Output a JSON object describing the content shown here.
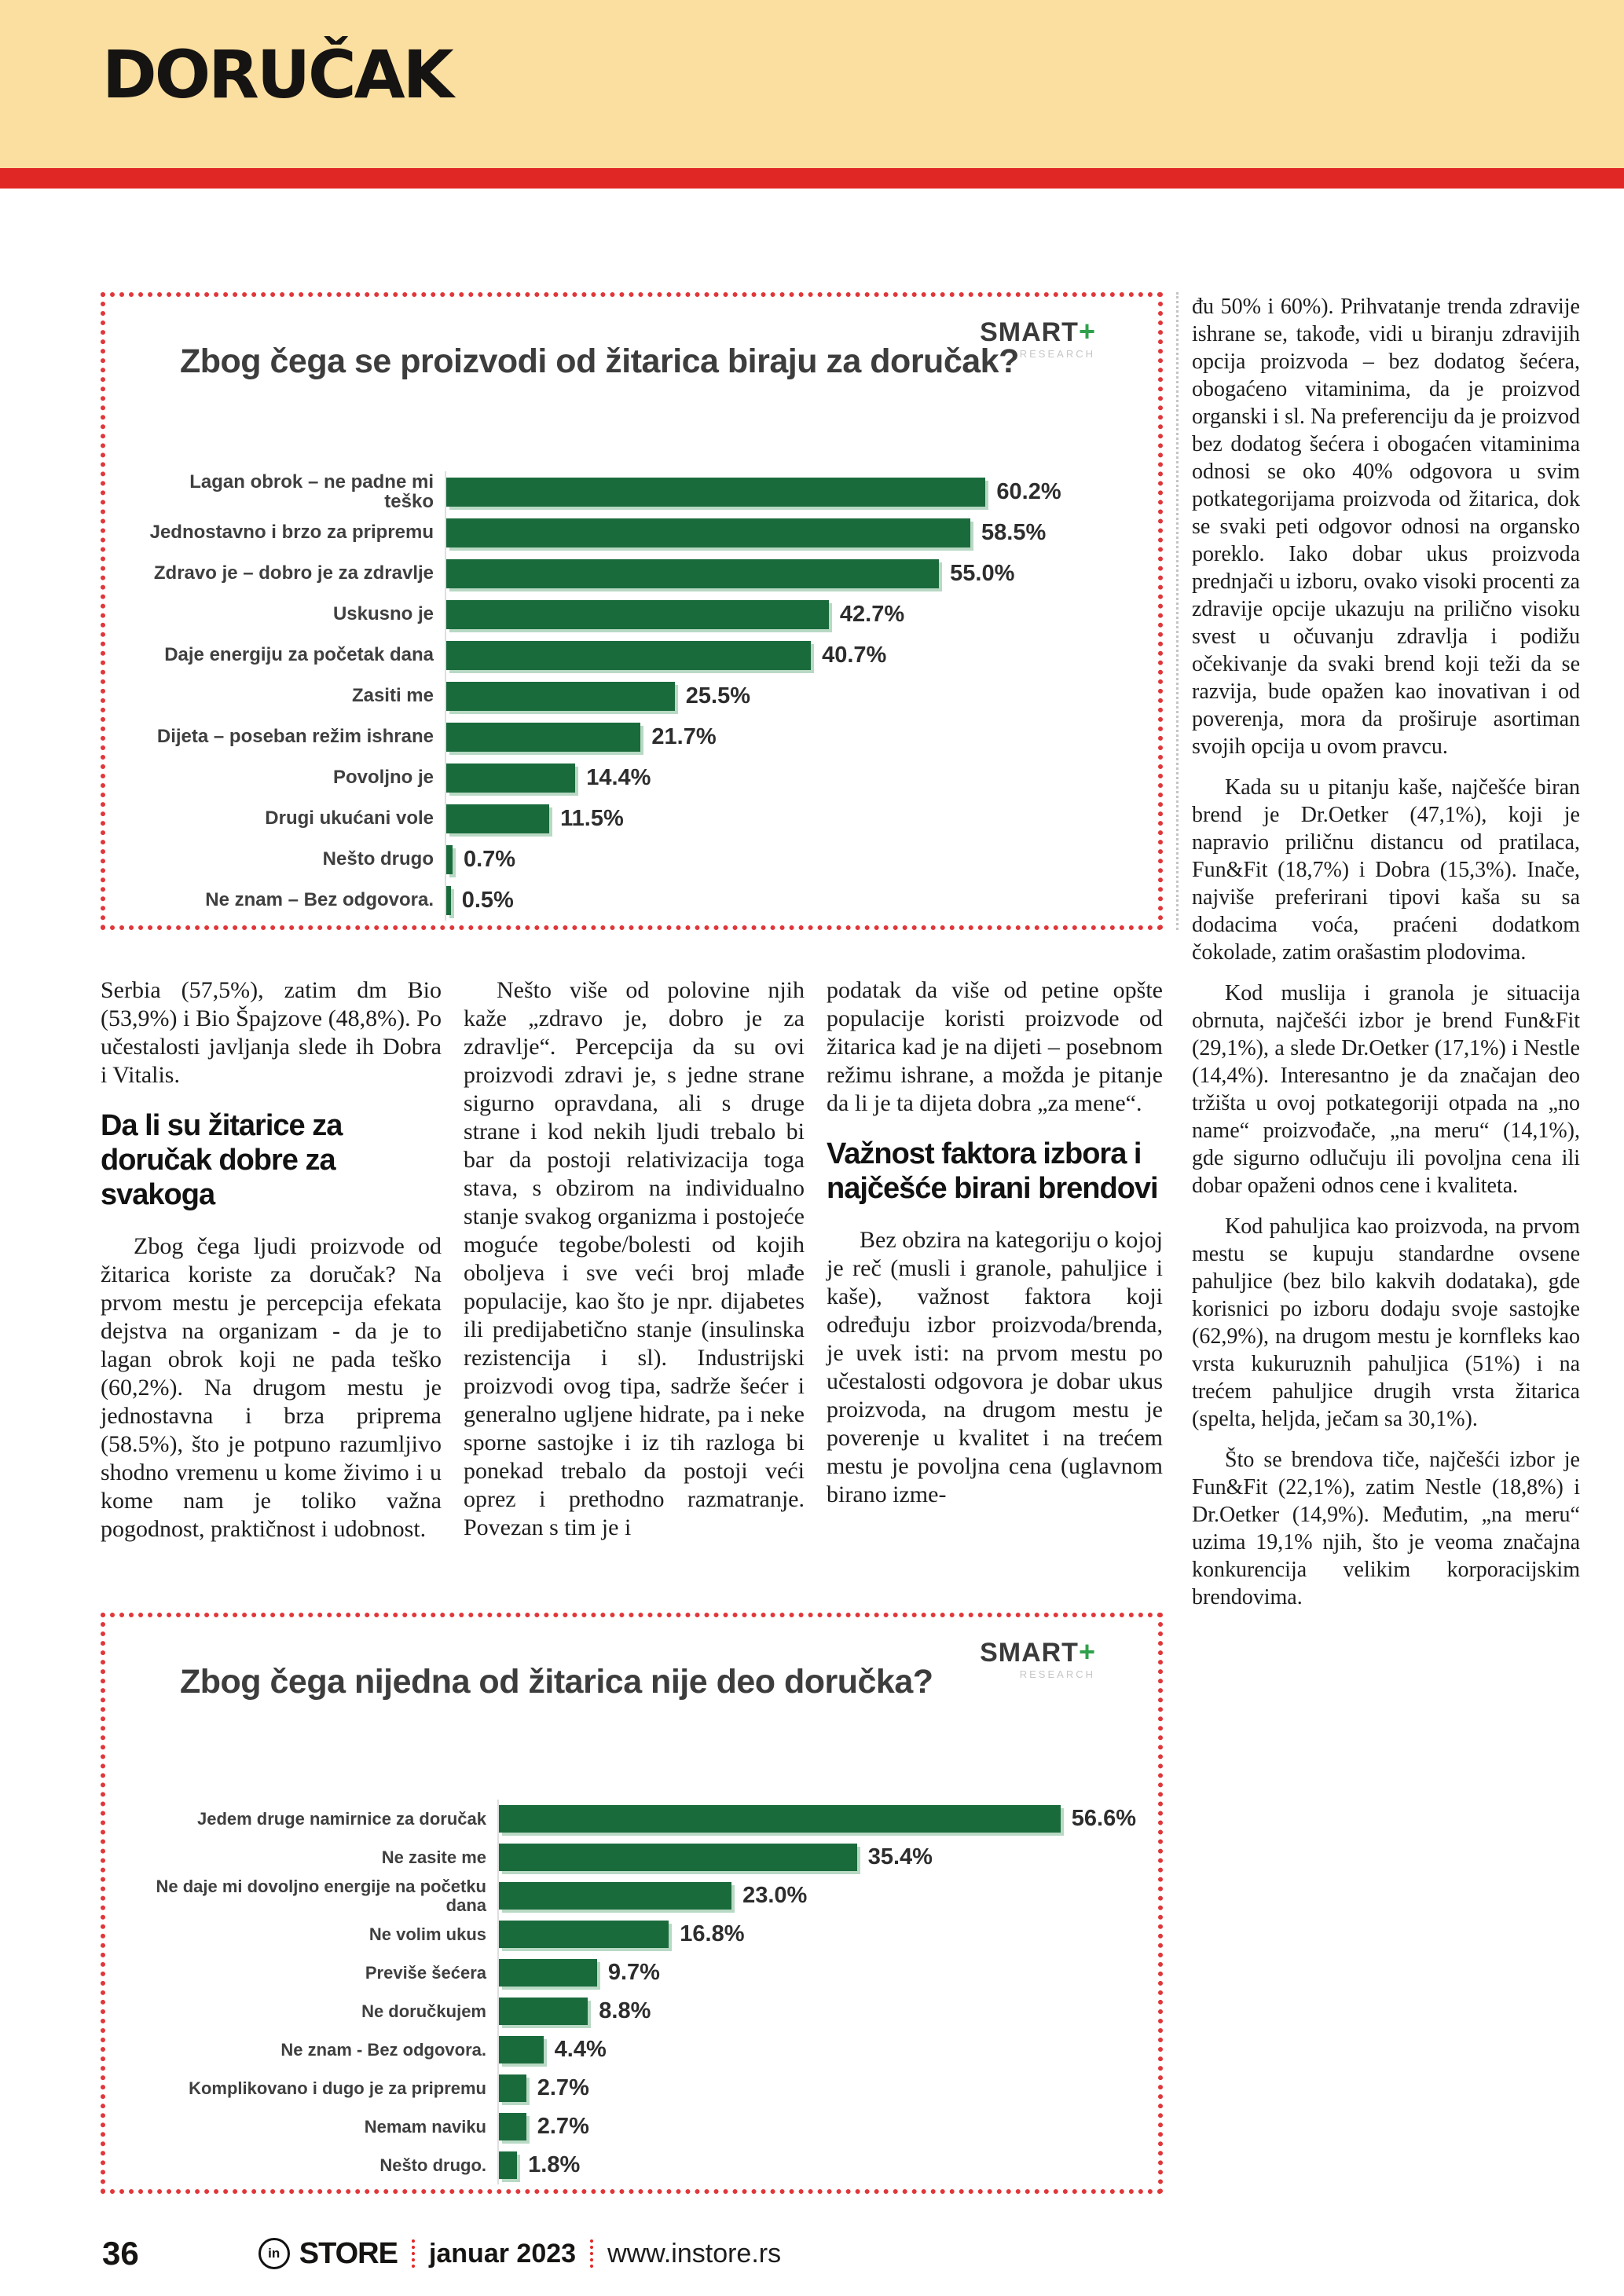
{
  "header": {
    "title": "DORUČAK"
  },
  "charts": [
    {
      "type": "bar",
      "title": "Zbog čega se proizvodi od žitarica biraju za doručak?",
      "logo": {
        "brand": "SMART",
        "plus": "+",
        "sub": "RESEARCH"
      },
      "bar_color": "#1a6b3c",
      "rows": [
        {
          "label": "Lagan obrok – ne padne mi teško",
          "value": 60.2,
          "display": "60.2%"
        },
        {
          "label": "Jednostavno i brzo za pripremu",
          "value": 58.5,
          "display": "58.5%"
        },
        {
          "label": "Zdravo je – dobro je za zdravlje",
          "value": 55.0,
          "display": "55.0%"
        },
        {
          "label": "Uskusno je",
          "value": 42.7,
          "display": "42.7%"
        },
        {
          "label": "Daje energiju za početak dana",
          "value": 40.7,
          "display": "40.7%"
        },
        {
          "label": "Zasiti me",
          "value": 25.5,
          "display": "25.5%"
        },
        {
          "label": "Dijeta – poseban režim ishrane",
          "value": 21.7,
          "display": "21.7%"
        },
        {
          "label": "Povoljno je",
          "value": 14.4,
          "display": "14.4%"
        },
        {
          "label": "Drugi ukućani vole",
          "value": 11.5,
          "display": "11.5%"
        },
        {
          "label": "Nešto drugo",
          "value": 0.7,
          "display": "0.7%"
        },
        {
          "label": "Ne znam – Bez odgovora.",
          "value": 0.5,
          "display": "0.5%"
        }
      ]
    },
    {
      "type": "bar",
      "title": "Zbog čega nijedna od žitarica nije deo doručka?",
      "logo": {
        "brand": "SMART",
        "plus": "+",
        "sub": "RESEARCH"
      },
      "bar_color": "#1a6b3c",
      "rows": [
        {
          "label": "Jedem druge namirnice za doručak",
          "value": 56.6,
          "display": "56.6%"
        },
        {
          "label": "Ne zasite me",
          "value": 35.4,
          "display": "35.4%"
        },
        {
          "label": "Ne daje mi dovoljno energije na početku dana",
          "value": 23.0,
          "display": "23.0%"
        },
        {
          "label": "Ne volim ukus",
          "value": 16.8,
          "display": "16.8%"
        },
        {
          "label": "Previše šećera",
          "value": 9.7,
          "display": "9.7%"
        },
        {
          "label": "Ne doručkujem",
          "value": 8.8,
          "display": "8.8%"
        },
        {
          "label": "Ne znam - Bez odgovora.",
          "value": 4.4,
          "display": "4.4%"
        },
        {
          "label": "Komplikovano i dugo je za pripremu",
          "value": 2.7,
          "display": "2.7%"
        },
        {
          "label": "Nemam naviku",
          "value": 2.7,
          "display": "2.7%"
        },
        {
          "label": "Nešto drugo.",
          "value": 1.8,
          "display": "1.8%"
        }
      ]
    }
  ],
  "article": {
    "col1": {
      "p1": "Serbia (57,5%), zatim dm Bio (53,9%) i Bio Špajzove (48,8%). Po učestalosti javljanja slede ih Dobra i Vitalis.",
      "heading": "Da li su žitarice za doručak dobre za svakoga",
      "p2": "Zbog čega ljudi proizvode od žitarica koriste za doručak? Na prvom mestu je percepcija efekata dejstva na organizam - da je to lagan obrok koji ne pada teško (60,2%). Na drugom mestu je jednostavna i brza priprema (58.5%), što je potpuno razumljivo shodno vremenu u kome živimo i u kome nam je toliko važna pogodnost, praktičnost i udobnost."
    },
    "col2": {
      "p1": "Nešto više od polovine njih kaže „zdravo je, dobro je za zdravlje“. Percepcija da su ovi proizvodi zdravi je, s jedne strane sigurno opravdana, ali s druge strane i kod nekih ljudi trebalo bi bar da postoji relativizacija toga stava, s obzirom na individualno stanje svakog organizma i postojeće moguće tegobe/bolesti od kojih oboljeva i sve veći broj mlađe populacije, kao što je npr. dijabetes ili predijabetično stanje (insulinska rezistencija i sl). Industrijski proizvodi ovog tipa, sadrže šećer i generalno ugljene hidrate, pa i neke sporne sastojke i iz tih razloga bi ponekad trebalo da postoji veći oprez i prethodno razmatranje. Povezan s tim je i"
    },
    "col3": {
      "p1": "podatak da više od petine opšte populacije koristi proizvode od žitarica kad je na dijeti – posebnom režimu ishrane, a možda je pitanje da li je ta dijeta dobra „za mene“.",
      "heading": "Važnost faktora izbora i najčešće birani brendovi",
      "p2": "Bez obzira na kategoriju o kojoj je reč (musli i granole, pahuljice i kaše), važnost faktora koji određuju izbor proizvoda/brenda, je uvek isti: na prvom mestu po učestalosti odgovora je dobar ukus proizvoda, na drugom mestu je poverenje u kvalitet i na trećem mestu je povoljna cena (uglavnom birano izme-"
    },
    "right": {
      "p1": "đu 50% i 60%). Prihvatanje trenda zdravije ishrane se, takođe, vidi u biranju zdravijih opcija proizvoda – bez dodatog šećera, obogaćeno vitaminima, da je proizvod organski i sl. Na preferenciju da je proizvod bez dodatog šećera i obogaćen vitaminima odnosi se oko 40% odgovora u svim potkategorijama proizvoda od žitarica, dok se svaki peti odgovor odnosi na organsko poreklo. Iako dobar ukus proizvoda prednjači u izboru, ovako visoki procenti za zdravije opcije ukazuju na prilično visoku svest u očuvanju zdravlja i podižu očekivanje da svaki brend koji teži da se razvija, bude opažen kao inovativan i od poverenja, mora da proširuje asortiman svojih opcija u ovom pravcu.",
      "p2": "Kada su u pitanju kaše, najčešće biran brend je Dr.Oetker (47,1%), koji je napravio priličnu distancu od pratilaca, Fun&Fit (18,7%) i Dobra (15,3%). Inače, najviše preferirani tipovi kaša su sa dodacima voća, praćeni dodatkom čokolade, zatim orašastim plodovima.",
      "p3": "Kod muslija i granola je situacija obrnuta, najčešći izbor je brend Fun&Fit (29,1%), a slede Dr.Oetker (17,1%) i Nestle (14,4%). Interesantno je da značajan deo tržišta u ovoj potkategoriji otpada na „no name“ proizvođače, „na meru“ (14,1%), gde sigurno odlučuju ili povoljna cena ili dobar opaženi odnos cene i kvaliteta.",
      "p4": "Kod pahuljica kao proizvoda, na prvom mestu se kupuju standardne ovsene pahuljice (bez bilo kakvih dodataka), gde korisnici po izboru dodaju svoje sastojke (62,9%), na drugom mestu je kornfleks kao vrsta kukuruznih pahuljica (51%) i na trećem pahuljice drugih vrsta žitarica (spelta, heljda, ječam sa 30,1%).",
      "p5": "Što se brendova tiče, najčešći izbor je Fun&Fit (22,1%), zatim Nestle (18,8%) i Dr.Oetker (14,9%). Međutim, „na meru“ uzima 19,1% njih, što je veoma značajna konkurencija velikim korporacijskim brendovima."
    }
  },
  "footer": {
    "page_number": "36",
    "logo_icon_text": "in",
    "brand": "STORE",
    "issue": "januar 2023",
    "website": "www.instore.rs"
  },
  "colors": {
    "header_yellow": "#fbdfa0",
    "accent_red": "#e12726",
    "border_red": "#e0373a",
    "bar_green": "#1a6b3c",
    "bar_shadow_green": "#b8d9c4"
  }
}
